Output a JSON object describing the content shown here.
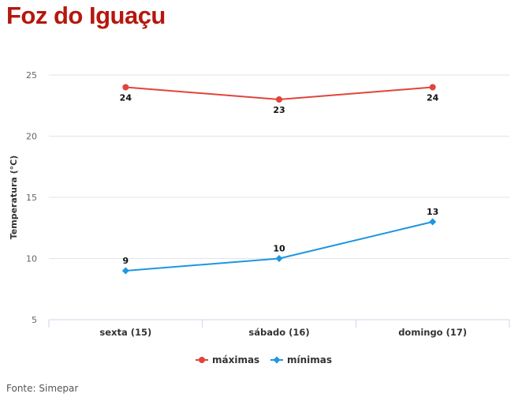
{
  "header": {
    "title": "Foz do Iguaçu"
  },
  "footer": {
    "source": "Fonte: Simepar"
  },
  "colors": {
    "title": "#b5170e",
    "maximas": "#e0453a",
    "minimas": "#1e96e0"
  },
  "chart_data": {
    "type": "line",
    "title": "Foz do Iguaçu",
    "xlabel": "",
    "ylabel": "Temperatura (°C)",
    "categories": [
      "sexta (15)",
      "sábado (16)",
      "domingo (17)"
    ],
    "ylim": [
      5,
      25
    ],
    "yticks": [
      5,
      10,
      15,
      20,
      25
    ],
    "grid": true,
    "legend": "bottom-center",
    "series": [
      {
        "name": "máximas",
        "values": [
          24,
          23,
          24
        ],
        "color": "#e0453a",
        "marker": "circle",
        "label_position": "below"
      },
      {
        "name": "mínimas",
        "values": [
          9,
          10,
          13
        ],
        "color": "#1e96e0",
        "marker": "diamond",
        "label_position": "above"
      }
    ]
  }
}
